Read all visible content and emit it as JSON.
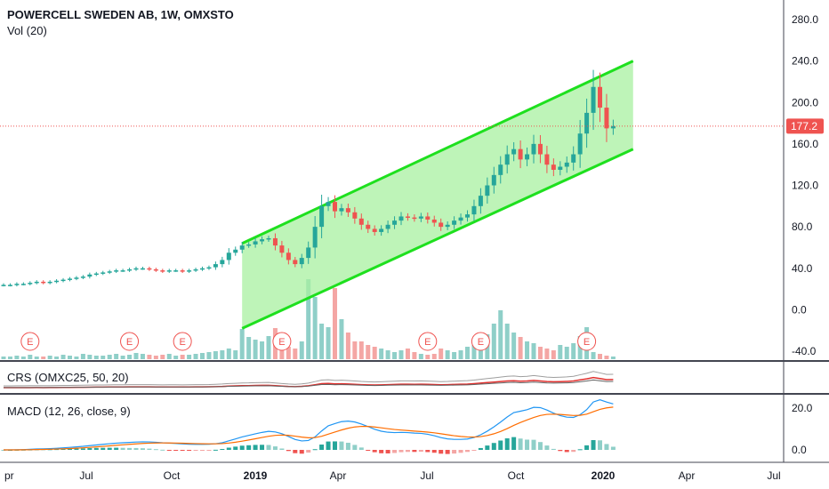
{
  "header": {
    "symbol_title": "POWERCELL SWEDEN AB, 1W, OMXSTO",
    "volume_label": "Vol (20)"
  },
  "price_axis": {
    "ticks": [
      "280.0",
      "240.0",
      "200.0",
      "160.0",
      "120.0",
      "80.0",
      "40.0",
      "0.0",
      "-40.0"
    ],
    "tick_values": [
      280,
      240,
      200,
      160,
      120,
      80,
      40,
      0,
      -40
    ],
    "last_price": "177.2",
    "last_price_value": 177.2
  },
  "crs_pane": {
    "label": "CRS (OMXC25, 50, 20)"
  },
  "macd_pane": {
    "label": "MACD (12, 26, close, 9)",
    "ticks": [
      "20.0",
      "0.0"
    ],
    "tick_values": [
      20,
      0
    ]
  },
  "time_axis": {
    "labels": [
      "pr",
      "Jul",
      "Oct",
      "2019",
      "Apr",
      "Jul",
      "Oct",
      "2020",
      "Apr",
      "Jul"
    ],
    "bold": [
      false,
      false,
      false,
      true,
      false,
      false,
      false,
      true,
      false,
      false
    ]
  },
  "earnings_marker": "E",
  "colors": {
    "up": "#26a69a",
    "down": "#ef5350",
    "up_vol": "#8fcfc8",
    "down_vol": "#f4a6a4",
    "channel_line": "#1ee01e",
    "channel_fill": "#a8f0a0",
    "last_price": "#ef5350",
    "crs_main": "#e0302e",
    "crs_ref": "#9e9e9e",
    "macd_line": "#2196f3",
    "signal_line": "#ff6d00"
  },
  "chart_data": {
    "type": "line",
    "title": "POWERCELL SWEDEN AB, 1W, OMXSTO",
    "xlabel": "",
    "ylabel": "",
    "ylim": [
      -40,
      280
    ],
    "x_time_labels": [
      "pr",
      "Jul",
      "Oct",
      "2019",
      "Apr",
      "Jul",
      "Oct",
      "2020",
      "Apr",
      "Jul"
    ],
    "series": [
      {
        "name": "",
        "values": [
          24,
          24,
          25,
          25,
          26,
          27,
          26,
          27,
          28,
          29,
          30,
          31,
          32,
          34,
          35,
          36,
          37,
          38,
          38,
          39,
          40,
          40,
          39,
          38,
          37,
          38,
          38,
          37,
          38,
          39,
          40,
          41,
          44,
          48,
          55,
          58,
          62,
          63,
          66,
          68,
          69,
          62,
          55,
          48,
          44,
          50,
          60,
          80,
          100,
          104,
          95,
          98,
          94,
          88,
          82,
          78,
          75,
          78,
          82,
          86,
          90,
          89,
          88,
          90,
          87,
          84,
          80,
          82,
          86,
          89,
          92,
          100,
          110,
          120,
          130,
          140,
          150,
          155,
          145,
          150,
          160,
          150,
          140,
          135,
          138,
          142,
          150,
          170,
          190,
          215,
          195,
          175,
          177.2
        ]
      }
    ],
    "channel": {
      "upper": {
        "from_week": 36,
        "from_value": 64,
        "to_week": 95,
        "to_value": 240
      },
      "lower": {
        "from_week": 36,
        "from_value": -18,
        "to_week": 95,
        "to_value": 155
      }
    },
    "earnings_weeks": [
      4,
      19,
      27,
      42,
      64,
      72,
      88
    ]
  }
}
